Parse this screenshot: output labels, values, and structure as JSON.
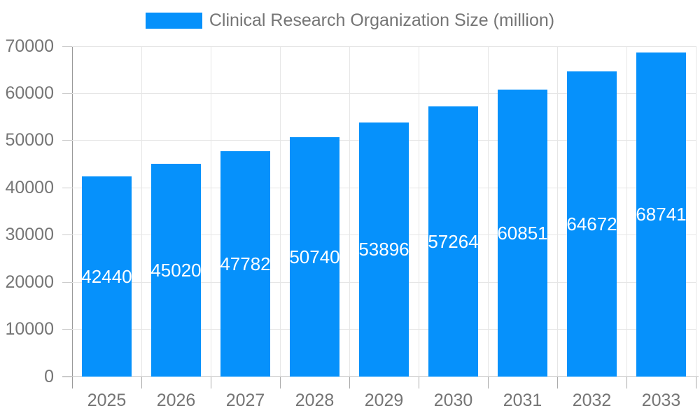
{
  "chart_data": {
    "type": "bar",
    "title": "Clinical Research Organization Size (million)",
    "legend": {
      "label": "Clinical Research Organization Size (million)",
      "position": "top-center"
    },
    "categories": [
      "2025",
      "2026",
      "2027",
      "2028",
      "2029",
      "2030",
      "2031",
      "2032",
      "2033"
    ],
    "series": [
      {
        "name": "Clinical Research Organization Size (million)",
        "values": [
          42440,
          45020,
          47782,
          50740,
          53896,
          57264,
          60851,
          64672,
          68741
        ]
      }
    ],
    "values": [
      42440,
      45020,
      47782,
      50740,
      53896,
      57264,
      60851,
      64672,
      68741
    ],
    "bar_labels": [
      "42440",
      "45020",
      "47782",
      "50740",
      "53896",
      "57264",
      "60851",
      "64672",
      "68741"
    ],
    "xlabel": "",
    "ylabel": "",
    "ylim": [
      0,
      70000
    ],
    "yticks": [
      0,
      10000,
      20000,
      30000,
      40000,
      50000,
      60000,
      70000
    ],
    "ytick_labels": [
      "0",
      "10000",
      "20000",
      "30000",
      "40000",
      "50000",
      "60000",
      "70000"
    ],
    "grid": true,
    "colors": {
      "bar": "#0691fb",
      "bar_value_text": "#ffffff",
      "axis_text": "#757575",
      "legend_text": "#757575",
      "gridline": "#e6e6e6",
      "axis_line": "#9a9a9a",
      "baseline": "#c9c9c9",
      "background": "#ffffff"
    }
  }
}
